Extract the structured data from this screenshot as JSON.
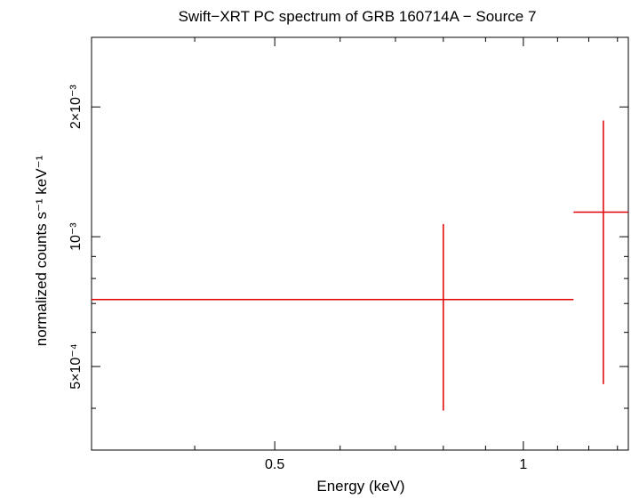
{
  "chart_data": {
    "type": "scatter",
    "title": "Swift−XRT PC spectrum of GRB 160714A − Source 7",
    "xlabel": "Energy (keV)",
    "ylabel": "normalized counts s⁻¹ keV⁻¹",
    "xscale": "log",
    "yscale": "log",
    "xlim": [
      0.3,
      1.34
    ],
    "ylim": [
      0.00032,
      0.0029
    ],
    "grid": false,
    "x_tick_labels": [
      {
        "value": 0.5,
        "label": "0.5"
      },
      {
        "value": 1,
        "label": "1"
      }
    ],
    "y_tick_labels": [
      {
        "value": 0.0005,
        "label": "5×10⁻⁴"
      },
      {
        "value": 0.001,
        "label": "10⁻³"
      },
      {
        "value": 0.002,
        "label": "2×10⁻³"
      }
    ],
    "series": [
      {
        "color": "#e00000",
        "points": [
          {
            "x": 0.8,
            "x_low": 0.3,
            "x_high": 1.15,
            "y": 0.000715,
            "y_low": 0.000395,
            "y_high": 0.00107
          },
          {
            "x": 1.25,
            "x_low": 1.15,
            "x_high": 1.34,
            "y": 0.00114,
            "y_low": 0.000455,
            "y_high": 0.00186
          }
        ]
      }
    ]
  }
}
